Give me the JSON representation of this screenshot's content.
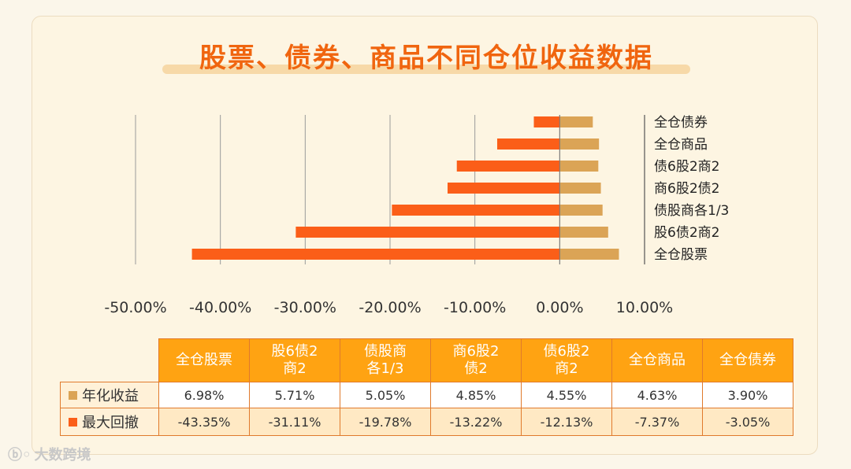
{
  "title": "股票、债券、商品不同仓位收益数据",
  "colors": {
    "return": "#dba456",
    "drawdown": "#fb5e18",
    "header": "#ffa312"
  },
  "chart_data": {
    "type": "bar",
    "orientation": "horizontal",
    "title": "股票、债券、商品不同仓位收益数据",
    "categories": [
      "全仓债券",
      "全仓商品",
      "债6股2商2",
      "商6股2债2",
      "债股商各1/3",
      "股6债2商2",
      "全仓股票"
    ],
    "series": [
      {
        "name": "年化收益",
        "values": [
          3.9,
          4.63,
          4.55,
          4.85,
          5.05,
          5.71,
          6.98
        ]
      },
      {
        "name": "最大回撤",
        "values": [
          -3.05,
          -7.37,
          -12.13,
          -13.22,
          -19.78,
          -31.11,
          -43.35
        ]
      }
    ],
    "xlim": [
      -50,
      10
    ],
    "xticks": [
      "-50.00%",
      "-40.00%",
      "-30.00%",
      "-20.00%",
      "-10.00%",
      "0.00%",
      "10.00%"
    ],
    "xtick_values": [
      -50,
      -40,
      -30,
      -20,
      -10,
      0,
      10
    ],
    "grid": true,
    "unit": "%"
  },
  "table": {
    "columns": [
      "全仓股票",
      "股6债2\n商2",
      "债股商\n各1/3",
      "商6股2\n债2",
      "债6股2\n商2",
      "全仓商品",
      "全仓债券"
    ],
    "rows": [
      {
        "label": "年化收益",
        "values": [
          "6.98%",
          "5.71%",
          "5.05%",
          "4.85%",
          "4.55%",
          "4.63%",
          "3.90%"
        ]
      },
      {
        "label": "最大回撤",
        "values": [
          "-43.35%",
          "-31.11%",
          "-19.78%",
          "-13.22%",
          "-12.13%",
          "-7.37%",
          "-3.05%"
        ]
      }
    ]
  },
  "watermark": "大数跨境"
}
